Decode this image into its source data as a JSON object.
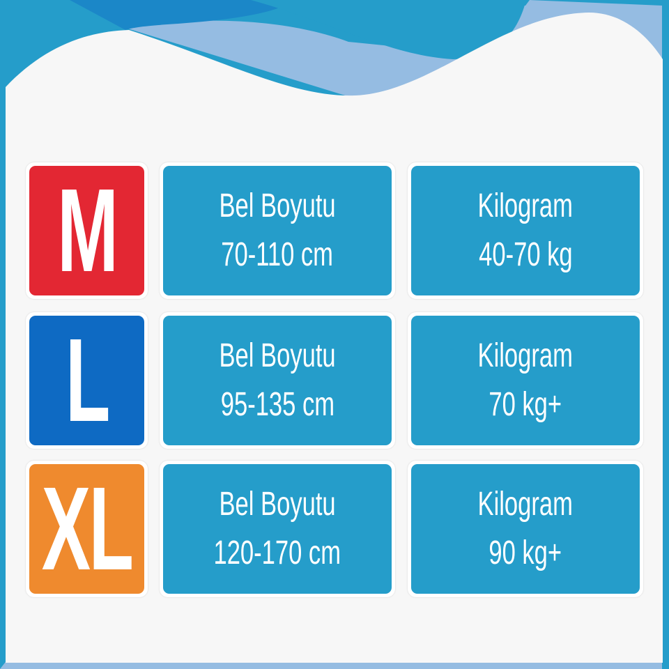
{
  "colors": {
    "frame": "#259dca",
    "wave_dark": "#1b87c8",
    "wave_light": "#95bce2",
    "background": "#f7f7f7",
    "info_box": "#259dca"
  },
  "rows": [
    {
      "size": "M",
      "size_color": "#e32733",
      "waist_label": "Bel Boyutu",
      "waist_value": "70-110 cm",
      "weight_label": "Kilogram",
      "weight_value": "40-70 kg"
    },
    {
      "size": "L",
      "size_color": "#0e6ac3",
      "waist_label": "Bel Boyutu",
      "waist_value": "95-135 cm",
      "weight_label": "Kilogram",
      "weight_value": "70 kg+"
    },
    {
      "size": "XL",
      "size_color": "#ef8a2e",
      "waist_label": "Bel Boyutu",
      "waist_value": "120-170 cm",
      "weight_label": "Kilogram",
      "weight_value": "90 kg+"
    }
  ]
}
